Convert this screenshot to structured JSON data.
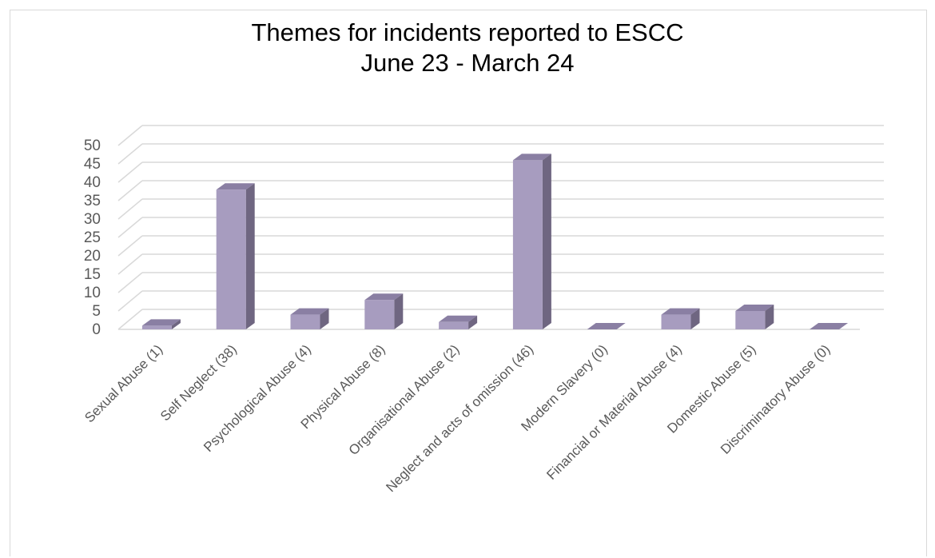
{
  "chart_data": {
    "type": "bar",
    "title": "Themes for incidents reported to ESCC",
    "subtitle": "June 23 - March 24",
    "xlabel": "",
    "ylabel": "",
    "ylim": [
      0,
      50
    ],
    "yticks": [
      0,
      5,
      10,
      15,
      20,
      25,
      30,
      35,
      40,
      45,
      50
    ],
    "grid": true,
    "legend": "none",
    "style": "3d-column",
    "categories": [
      "Sexual Abuse (1)",
      "Self Neglect (38)",
      "Psychological Abuse (4)",
      "Physical Abuse (8)",
      "Organisational Abuse (2)",
      "Neglect and acts of omission (46)",
      "Modern Slavery (0)",
      "Financial or Material Abuse (4)",
      "Domestic Abuse (5)",
      "Discriminatory Abuse (0)"
    ],
    "values": [
      1,
      38,
      4,
      8,
      2,
      46,
      0,
      4,
      5,
      0
    ],
    "colors": {
      "front": "#a79cbf",
      "side": "#6f6681",
      "top": "#8a7fa3",
      "grid": "#d9d9d9",
      "text": "#595959"
    }
  }
}
